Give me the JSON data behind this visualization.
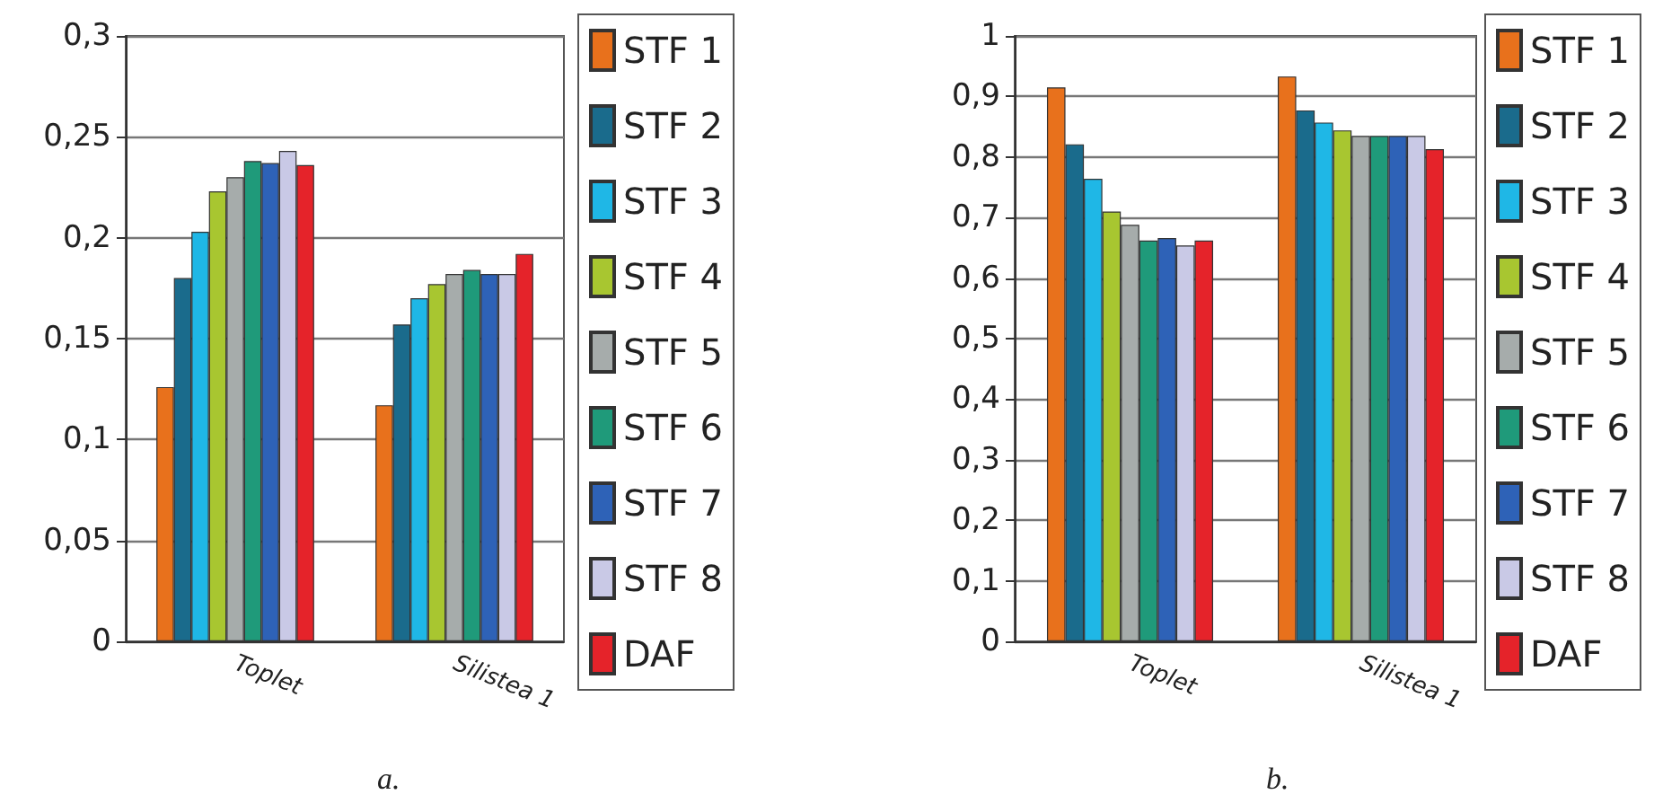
{
  "chart_data": [
    {
      "type": "bar",
      "categories": [
        "Toplet",
        "Silistea 1"
      ],
      "series": [
        {
          "name": "STF 1",
          "color": "#e8711c",
          "values": [
            0.126,
            0.117
          ]
        },
        {
          "name": "STF 2",
          "color": "#1a6b8c",
          "values": [
            0.18,
            0.157
          ]
        },
        {
          "name": "STF 3",
          "color": "#1fb7e6",
          "values": [
            0.203,
            0.17
          ]
        },
        {
          "name": "STF 4",
          "color": "#a8c630",
          "values": [
            0.223,
            0.177
          ]
        },
        {
          "name": "STF 5",
          "color": "#a6acab",
          "values": [
            0.23,
            0.182
          ]
        },
        {
          "name": "STF 6",
          "color": "#1f9a7a",
          "values": [
            0.238,
            0.184
          ]
        },
        {
          "name": "STF 7",
          "color": "#2e62b7",
          "values": [
            0.237,
            0.182
          ]
        },
        {
          "name": "STF 8",
          "color": "#c9c9e6",
          "values": [
            0.243,
            0.182
          ]
        },
        {
          "name": "DAF",
          "color": "#e5232a",
          "values": [
            0.236,
            0.192
          ]
        }
      ],
      "ylim": [
        0,
        0.3
      ],
      "yticks": [
        {
          "value": 0,
          "label": "0"
        },
        {
          "value": 0.05,
          "label": "0,05"
        },
        {
          "value": 0.1,
          "label": "0,1"
        },
        {
          "value": 0.15,
          "label": "0,15"
        },
        {
          "value": 0.2,
          "label": "0,2"
        },
        {
          "value": 0.25,
          "label": "0,25"
        },
        {
          "value": 0.3,
          "label": "0,3"
        }
      ],
      "grid": "y",
      "legend": "right",
      "annotations": [
        "a."
      ]
    },
    {
      "type": "bar",
      "categories": [
        "Toplet",
        "Silistea 1"
      ],
      "series": [
        {
          "name": "STF 1",
          "color": "#e8711c",
          "values": [
            0.915,
            0.933
          ]
        },
        {
          "name": "STF 2",
          "color": "#1a6b8c",
          "values": [
            0.821,
            0.877
          ]
        },
        {
          "name": "STF 3",
          "color": "#1fb7e6",
          "values": [
            0.764,
            0.857
          ]
        },
        {
          "name": "STF 4",
          "color": "#a8c630",
          "values": [
            0.71,
            0.844
          ]
        },
        {
          "name": "STF 5",
          "color": "#a6acab",
          "values": [
            0.688,
            0.835
          ]
        },
        {
          "name": "STF 6",
          "color": "#1f9a7a",
          "values": [
            0.662,
            0.835
          ]
        },
        {
          "name": "STF 7",
          "color": "#2e62b7",
          "values": [
            0.666,
            0.835
          ]
        },
        {
          "name": "STF 8",
          "color": "#c9c9e6",
          "values": [
            0.654,
            0.835
          ]
        },
        {
          "name": "DAF",
          "color": "#e5232a",
          "values": [
            0.662,
            0.813
          ]
        }
      ],
      "ylim": [
        0,
        1
      ],
      "yticks": [
        {
          "value": 0,
          "label": "0"
        },
        {
          "value": 0.1,
          "label": "0,1"
        },
        {
          "value": 0.2,
          "label": "0,2"
        },
        {
          "value": 0.3,
          "label": "0,3"
        },
        {
          "value": 0.4,
          "label": "0,4"
        },
        {
          "value": 0.5,
          "label": "0,5"
        },
        {
          "value": 0.6,
          "label": "0,6"
        },
        {
          "value": 0.7,
          "label": "0,7"
        },
        {
          "value": 0.8,
          "label": "0,8"
        },
        {
          "value": 0.9,
          "label": "0,9"
        },
        {
          "value": 1,
          "label": "1"
        }
      ],
      "grid": "y",
      "legend": "right",
      "annotations": [
        "b."
      ]
    }
  ]
}
